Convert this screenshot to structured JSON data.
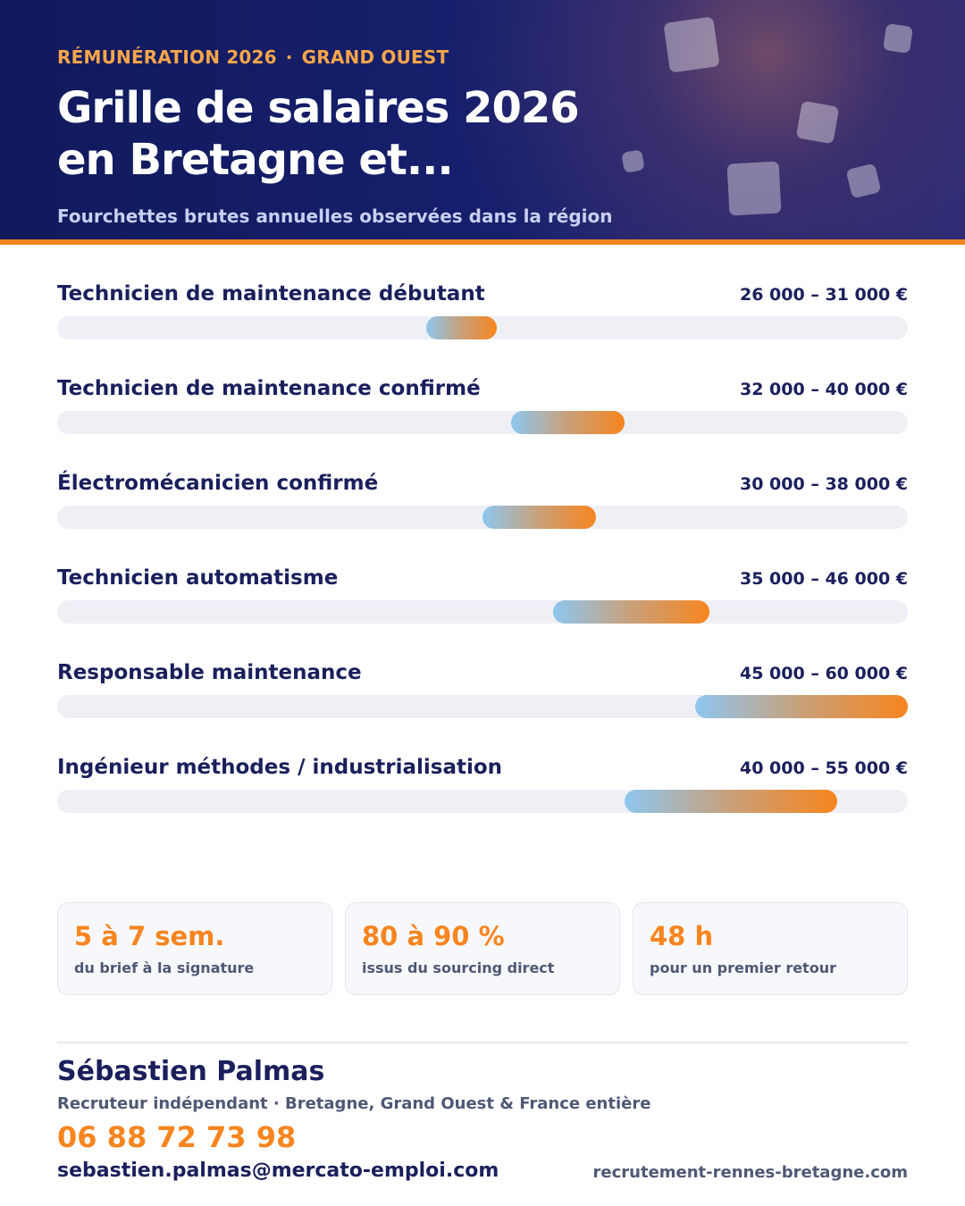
{
  "header": {
    "eyebrow_left": "RÉMUNÉRATION 2026",
    "eyebrow_sep": "·",
    "eyebrow_right": "GRAND OUEST",
    "title_line1": "Grille de salaires 2026",
    "title_line2": "en Bretagne et...",
    "subtitle": "Fourchettes brutes annuelles observées dans la région"
  },
  "colors": {
    "navy": "#1a1f5c",
    "accent_orange": "#f7851f",
    "range_start_blue": "#8ec7f0",
    "track": "#eef0f6"
  },
  "chart_data": {
    "type": "bar",
    "orientation": "horizontal-range",
    "unit": "€",
    "xlim": [
      0,
      60000
    ],
    "grid": false,
    "categories": [
      "Technicien de maintenance débutant",
      "Technicien de maintenance confirmé",
      "Électromécanicien confirmé",
      "Technicien automatisme",
      "Responsable maintenance",
      "Ingénieur méthodes / industrialisation"
    ],
    "ranges": [
      {
        "min": 26000,
        "max": 31000,
        "label": "26 000 – 31 000 €"
      },
      {
        "min": 32000,
        "max": 40000,
        "label": "32 000 – 40 000 €"
      },
      {
        "min": 30000,
        "max": 38000,
        "label": "30 000 – 38 000 €"
      },
      {
        "min": 35000,
        "max": 46000,
        "label": "35 000 – 46 000 €"
      },
      {
        "min": 45000,
        "max": 60000,
        "label": "45 000 – 60 000 €"
      },
      {
        "min": 40000,
        "max": 55000,
        "label": "40 000 – 55 000 €"
      }
    ]
  },
  "stats": [
    {
      "value": "5 à 7 sem.",
      "label": "du brief à la signature"
    },
    {
      "value": "80 à 90 %",
      "label": "issus du sourcing direct"
    },
    {
      "value": "48 h",
      "label": "pour un premier retour"
    }
  ],
  "footer": {
    "name": "Sébastien Palmas",
    "role": "Recruteur indépendant · Bretagne, Grand Ouest & France entière",
    "phone": "06 88 72 73 98",
    "email": "sebastien.palmas@mercato-emploi.com",
    "website": "recrutement-rennes-bretagne.com"
  }
}
